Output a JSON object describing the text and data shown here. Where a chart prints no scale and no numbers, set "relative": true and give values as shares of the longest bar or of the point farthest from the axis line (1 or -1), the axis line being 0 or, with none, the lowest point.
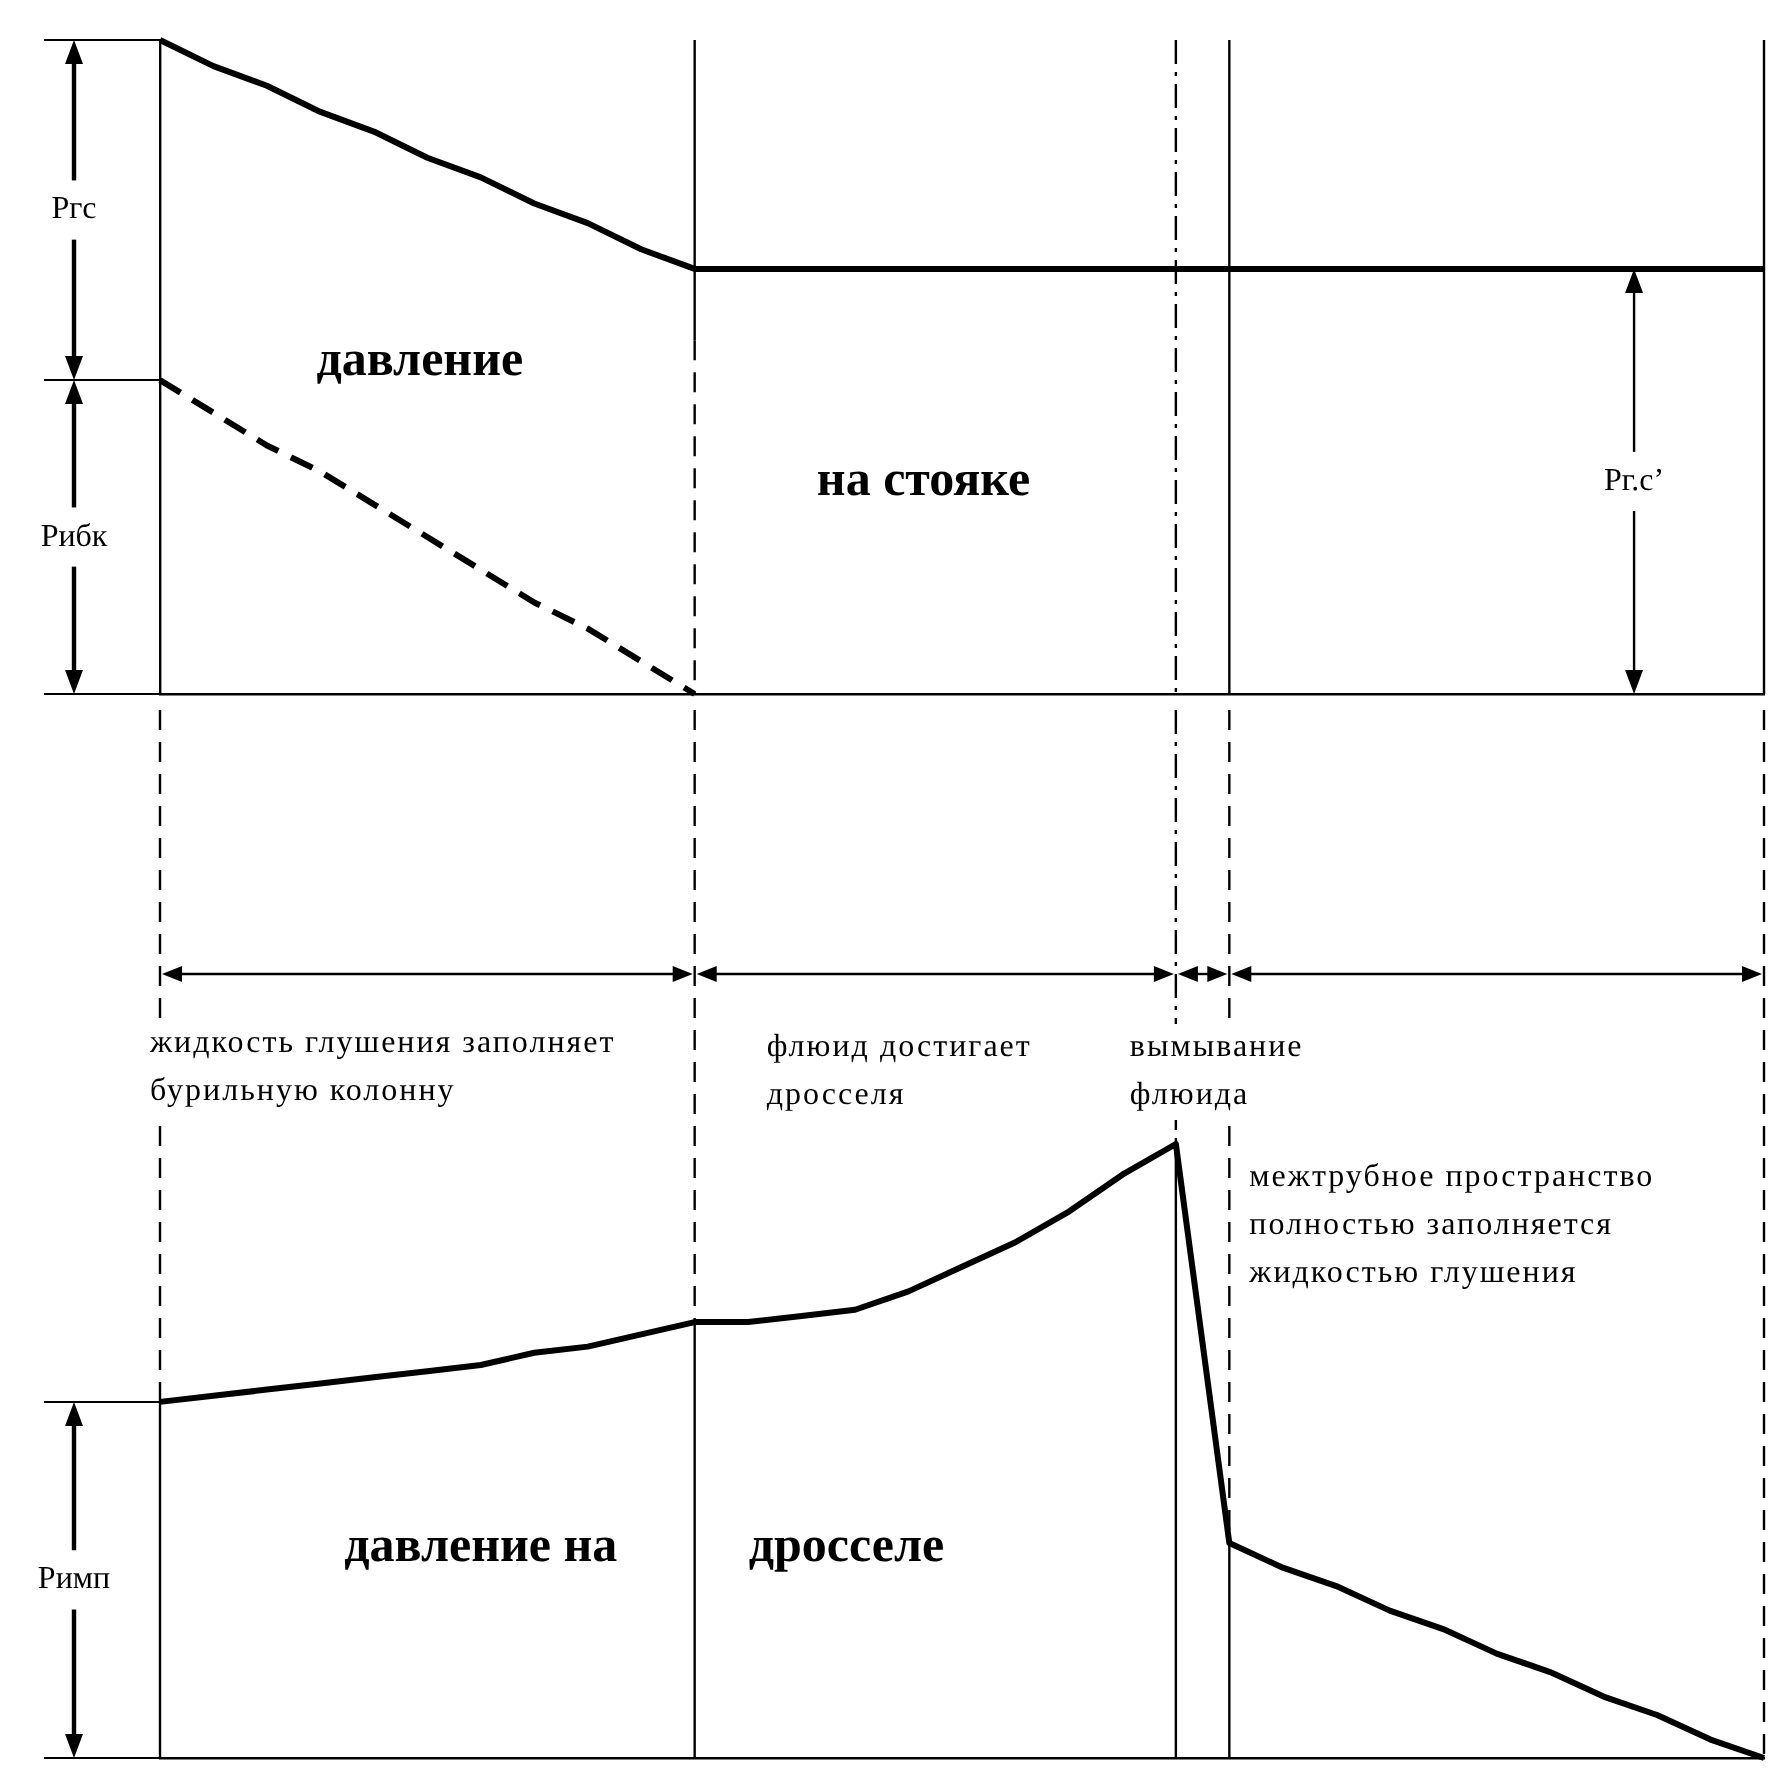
{
  "chart_data": [
    {
      "type": "line",
      "title": "давление на стояке",
      "relative": true,
      "grid": "x",
      "categories": [
        null,
        null,
        null,
        null,
        null,
        null,
        null,
        null,
        null,
        null,
        null,
        null,
        null,
        null,
        null,
        null,
        null,
        null,
        null,
        null,
        null,
        null,
        null,
        null,
        null,
        null,
        null,
        null,
        null,
        null,
        null
      ],
      "series": [
        {
          "color": "#000000",
          "values": [
            1,
            0.96,
            0.93,
            0.89,
            0.86,
            0.82,
            0.79,
            0.75,
            0.72,
            0.68,
            0.65,
            0.65,
            0.65,
            0.65,
            0.65,
            0.65,
            0.65,
            0.65,
            0.65,
            0.65,
            0.65,
            0.65,
            0.65,
            0.65,
            0.65,
            0.65,
            0.65,
            0.65,
            0.65,
            0.65,
            0.65
          ]
        },
        {
          "color": "#000000",
          "line_style": "dashed",
          "values": [
            0.48,
            0.43,
            0.38,
            0.34,
            0.29,
            0.24,
            0.19,
            0.14,
            0.1,
            0.05,
            0,
            null,
            null,
            null,
            null,
            null,
            null,
            null,
            null,
            null,
            null,
            null,
            null,
            null,
            null,
            null,
            null,
            null,
            null,
            null,
            null
          ]
        }
      ],
      "annotations": [
        "Ргс",
        "Рибк",
        "Рг.с’"
      ]
    },
    {
      "type": "line",
      "title": "давление на дросселе",
      "relative": true,
      "grid": "x",
      "categories": [
        null,
        null,
        null,
        null,
        null,
        null,
        null,
        null,
        null,
        null,
        null,
        null,
        null,
        null,
        null,
        null,
        null,
        null,
        null,
        null,
        null,
        null,
        null,
        null,
        null,
        null,
        null,
        null,
        null,
        null,
        null
      ],
      "series": [
        {
          "color": "#000000",
          "values": [
            0.58,
            0.59,
            0.6,
            0.61,
            0.62,
            0.63,
            0.64,
            0.66,
            0.67,
            0.69,
            0.71,
            0.71,
            0.72,
            0.73,
            0.76,
            0.8,
            0.84,
            0.89,
            0.95,
            1,
            0.35,
            0.31,
            0.28,
            0.24,
            0.21,
            0.17,
            0.14,
            0.1,
            0.07,
            0.03,
            0
          ]
        }
      ],
      "annotations": [
        "жидкость глушения заполняет бурильную колонну",
        "флюид достигает дросселя",
        "вымывание флюида",
        "межтрубное пространство полностью заполняется жидкостью глушения",
        "Римп"
      ]
    }
  ]
}
